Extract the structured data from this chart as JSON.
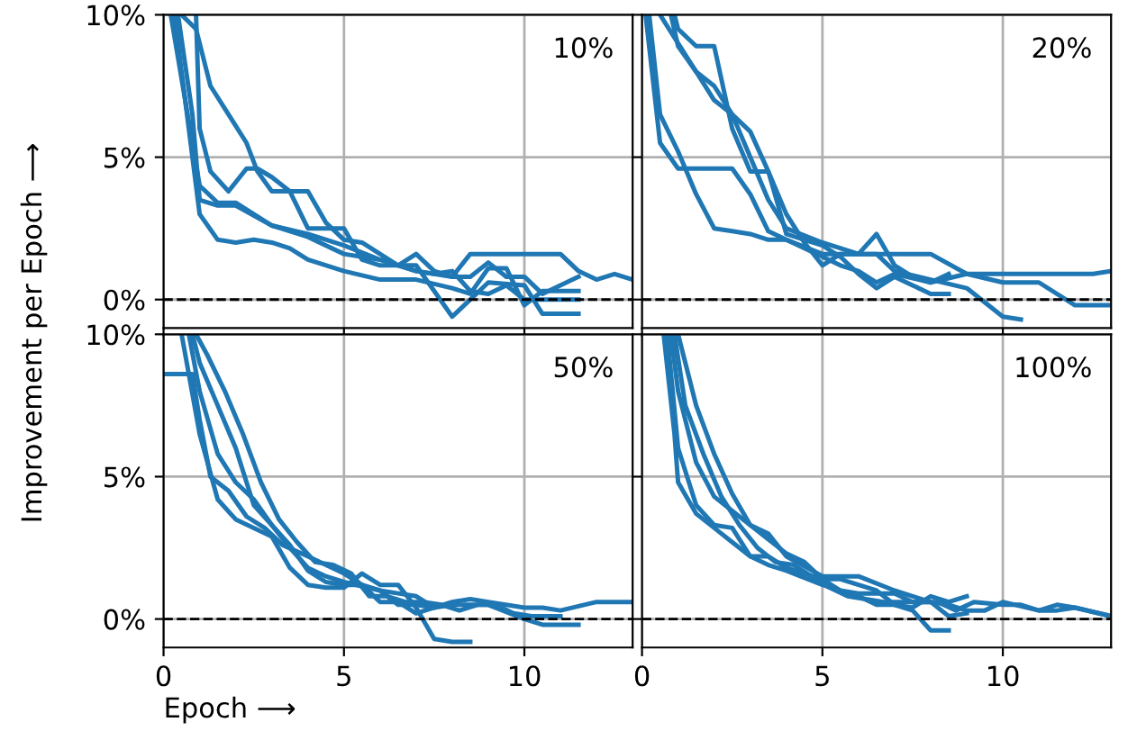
{
  "chart_data": [
    {
      "type": "line",
      "title": "10%",
      "ylabel": "Improvement per Epoch ⟶",
      "xlim": [
        0,
        13
      ],
      "ylim": [
        -1,
        10
      ],
      "xticks": [
        {
          "value": 0,
          "label": null
        },
        {
          "value": 5,
          "label": null
        },
        {
          "value": 10,
          "label": null
        }
      ],
      "yticks": [
        {
          "value": 0,
          "label": "0%"
        },
        {
          "value": 5,
          "label": "5%"
        },
        {
          "value": 10,
          "label": "10%"
        }
      ],
      "grid": true,
      "tick_labels": "y",
      "ref_lines": [
        {
          "axis": "y",
          "value": 0,
          "color": "#000000",
          "line_style": "dashed"
        }
      ],
      "series": [
        {
          "color": "#1f77b4",
          "x": [
            0.2,
            0.6,
            1.0,
            1.5,
            2.0,
            2.5,
            3.0,
            4.0,
            5.0,
            6.0,
            7.0,
            8.0,
            8.5,
            9.0,
            10.0,
            11.0,
            11.5,
            12.0,
            12.5,
            13.0
          ],
          "values": [
            10,
            7,
            4,
            3.4,
            3.4,
            3.0,
            2.6,
            2.3,
            1.9,
            1.4,
            1.0,
            0.8,
            1.6,
            1.6,
            1.6,
            1.6,
            1.0,
            0.7,
            0.9,
            0.7
          ]
        },
        {
          "color": "#1f77b4",
          "x": [
            0.5,
            0.9,
            1.3,
            1.8,
            2.3,
            2.6,
            3.0,
            3.5,
            4.0,
            5.0,
            5.5,
            6.0,
            7.0,
            7.5,
            8.0,
            9.0,
            10.0,
            10.5,
            11.5
          ],
          "values": [
            10,
            9.5,
            7.5,
            6.5,
            5.5,
            4.5,
            3.8,
            3.8,
            2.5,
            2.5,
            1.4,
            1.2,
            1.2,
            0.3,
            -0.6,
            0.6,
            0.5,
            -0.5,
            -0.5
          ]
        },
        {
          "color": "#1f77b4",
          "x": [
            0.3,
            0.7,
            1.0,
            1.5,
            2.0,
            2.5,
            3.0,
            3.5,
            4.0,
            5.0,
            6.0,
            7.0,
            8.0,
            8.5,
            9.0,
            9.5,
            10.0,
            10.5,
            11.5
          ],
          "values": [
            10,
            6,
            3.0,
            2.1,
            2.0,
            2.1,
            2.0,
            1.8,
            1.4,
            1.0,
            0.7,
            0.7,
            0.4,
            0.2,
            1.1,
            1.1,
            -0.2,
            0.3,
            0.3
          ]
        },
        {
          "color": "#1f77b4",
          "x": [
            0.4,
            0.8,
            1.0,
            1.5,
            2.0,
            3.0,
            4.0,
            5.0,
            6.0,
            7.0,
            7.5,
            8.0,
            8.5,
            9.0,
            9.5,
            10.0,
            11.5
          ],
          "values": [
            10,
            6.5,
            3.5,
            3.3,
            3.3,
            2.6,
            2.2,
            1.6,
            1.4,
            1.0,
            0.9,
            1.0,
            0.3,
            0.2,
            0.5,
            0,
            0
          ]
        },
        {
          "color": "#1f77b4",
          "x": [
            0.9,
            1.0,
            1.3,
            1.8,
            2.3,
            2.6,
            3.0,
            3.5,
            4.0,
            4.5,
            5.0,
            5.5,
            6.0,
            6.5,
            7.0,
            7.5,
            8.0,
            8.5,
            9.0,
            9.5,
            10.0,
            10.5,
            11.5
          ],
          "values": [
            10,
            6,
            4.5,
            3.8,
            4.6,
            4.6,
            4.3,
            3.8,
            3.8,
            2.7,
            2.1,
            2.0,
            1.6,
            1.2,
            1.6,
            1.0,
            0.8,
            0.8,
            1.3,
            0.8,
            0.8,
            0.2,
            0.8
          ]
        }
      ]
    },
    {
      "type": "line",
      "title": "20%",
      "xlim": [
        0,
        13
      ],
      "ylim": [
        -1,
        10
      ],
      "xticks": [
        {
          "value": 0,
          "label": null
        },
        {
          "value": 5,
          "label": null
        },
        {
          "value": 10,
          "label": null
        }
      ],
      "yticks": [
        {
          "value": 0,
          "label": null
        },
        {
          "value": 5,
          "label": null
        },
        {
          "value": 10,
          "label": null
        }
      ],
      "grid": true,
      "tick_labels": false,
      "ref_lines": [
        {
          "axis": "y",
          "value": 0,
          "color": "#000000",
          "line_style": "dashed"
        }
      ],
      "series": [
        {
          "color": "#1f77b4",
          "x": [
            0.1,
            0.5,
            1.0,
            1.5,
            2.0,
            2.5,
            3.0,
            3.5,
            4.0,
            5.0,
            5.5,
            6.0,
            6.5,
            7.0,
            8.0,
            9.0,
            10.0,
            11.0,
            12.0,
            12.5,
            13.0
          ],
          "values": [
            10,
            5.5,
            4.6,
            4.6,
            4.6,
            4.6,
            3.7,
            2.4,
            2.1,
            1.5,
            1.2,
            1.0,
            0.6,
            0.9,
            0.6,
            0.9,
            0.9,
            0.9,
            0.9,
            0.9,
            1.0
          ]
        },
        {
          "color": "#1f77b4",
          "x": [
            0.2,
            0.5,
            1.0,
            1.5,
            2.0,
            2.5,
            3.0,
            3.5,
            4.0,
            5.0,
            5.5,
            6.0,
            7.0,
            8.0,
            9.0,
            10.0,
            10.5,
            11.0,
            12.0,
            13.0
          ],
          "values": [
            10,
            6.5,
            5.2,
            3.7,
            2.5,
            2.4,
            2.3,
            2.1,
            2.1,
            1.6,
            1.6,
            1.6,
            1.6,
            1.6,
            0.9,
            0.6,
            0.6,
            0.6,
            -0.2,
            -0.2
          ]
        },
        {
          "color": "#1f77b4",
          "x": [
            0.5,
            1.0,
            1.5,
            2.0,
            2.5,
            3.0,
            3.5,
            4.0,
            5.0,
            6.0,
            6.5,
            7.0,
            8.0,
            9.0,
            10.0,
            10.5
          ],
          "values": [
            10,
            9.0,
            8.0,
            7.0,
            6.5,
            5.0,
            3.5,
            2.5,
            2.0,
            1.6,
            1.6,
            1.0,
            0.7,
            0.4,
            -0.6,
            -0.7
          ]
        },
        {
          "color": "#1f77b4",
          "x": [
            0.8,
            1.0,
            1.5,
            2.0,
            2.5,
            3.0,
            3.5,
            4.0,
            4.5,
            5.0,
            5.5,
            6.0,
            6.5,
            7.0,
            7.5,
            8.0,
            8.5
          ],
          "values": [
            10,
            8.9,
            8.0,
            7.5,
            6.5,
            5.9,
            4.5,
            3.0,
            2.0,
            1.2,
            1.6,
            1.6,
            2.3,
            1.2,
            0.8,
            0.6,
            0.9
          ]
        },
        {
          "color": "#1f77b4",
          "x": [
            0.9,
            1.0,
            1.5,
            2.0,
            2.5,
            3.0,
            3.5,
            4.0,
            4.5,
            5.0,
            5.5,
            6.0,
            6.5,
            7.0,
            7.5,
            8.0,
            8.5
          ],
          "values": [
            10,
            9.5,
            8.9,
            8.9,
            6.0,
            4.5,
            4.5,
            2.3,
            2.1,
            1.9,
            1.5,
            0.9,
            0.4,
            0.8,
            0.5,
            0.2,
            0.2
          ]
        }
      ]
    },
    {
      "type": "line",
      "xlabel": "Epoch ⟶",
      "xlim": [
        0,
        13
      ],
      "ylim": [
        -1,
        10
      ],
      "xticks": [
        0,
        5,
        10
      ],
      "yticks": [
        {
          "value": 0,
          "label": "0%"
        },
        {
          "value": 5,
          "label": "5%"
        },
        {
          "value": 10,
          "label": "10%"
        }
      ],
      "grid": true,
      "ref_lines": [
        {
          "axis": "y",
          "value": 0,
          "color": "#000000",
          "line_style": "dashed"
        }
      ],
      "title": "50%",
      "series": [
        {
          "color": "#1f77b4",
          "x": [
            0,
            0.8,
            1.0,
            1.3,
            1.8,
            2.3,
            2.8,
            3.3,
            4.0,
            5.0,
            5.5,
            6.0,
            6.5,
            7.0,
            7.5,
            8.0,
            8.5,
            9.0,
            10.0,
            10.5,
            11.0,
            12.0,
            13.0
          ],
          "values": [
            8.6,
            8.6,
            7.0,
            5.0,
            4.5,
            3.6,
            3.2,
            2.6,
            2.2,
            1.6,
            1.2,
            1.0,
            0.5,
            0.5,
            0.4,
            0.6,
            0.7,
            0.6,
            0.4,
            0.4,
            0.3,
            0.6,
            0.6
          ]
        },
        {
          "color": "#1f77b4",
          "x": [
            0.5,
            1.0,
            1.5,
            2.0,
            2.5,
            3.0,
            3.5,
            4.0,
            4.5,
            5.0,
            5.5,
            6.0,
            6.5,
            7.0,
            7.5,
            8.0,
            8.5
          ],
          "values": [
            10,
            6.5,
            4.2,
            3.5,
            3.2,
            2.9,
            1.8,
            1.2,
            1.1,
            1.1,
            1.6,
            1.2,
            1.2,
            0.4,
            -0.7,
            -0.8,
            -0.8
          ]
        },
        {
          "color": "#1f77b4",
          "x": [
            0.7,
            1.0,
            1.5,
            2.0,
            2.5,
            3.0,
            3.5,
            4.0,
            4.5,
            5.0,
            6.0,
            6.5,
            7.0,
            7.5,
            8.0,
            9.0,
            10.0,
            10.5,
            11.5
          ],
          "values": [
            10,
            8.0,
            5.8,
            4.8,
            4.2,
            3.3,
            2.5,
            1.8,
            1.5,
            1.3,
            1.0,
            0.9,
            0.8,
            0.4,
            0.5,
            0.5,
            0.0,
            -0.2,
            -0.2
          ]
        },
        {
          "color": "#1f77b4",
          "x": [
            0.8,
            1.0,
            1.5,
            2.0,
            2.5,
            3.0,
            3.5,
            4.0,
            4.5,
            5.0,
            5.5,
            6.0,
            6.5,
            7.0,
            7.5
          ],
          "values": [
            10,
            9.0,
            7.5,
            6.0,
            4.0,
            3.3,
            2.6,
            1.7,
            1.3,
            1.2,
            1.2,
            0.6,
            0.6,
            0.2,
            0.4
          ]
        },
        {
          "color": "#1f77b4",
          "x": [
            0.9,
            1.2,
            1.7,
            2.2,
            2.7,
            3.2,
            3.7,
            4.2,
            4.7,
            5.2,
            5.7,
            6.2,
            6.7,
            7.2,
            7.7,
            8.2,
            8.7,
            9.2,
            9.7,
            10.2,
            11.0
          ],
          "values": [
            10,
            9.3,
            8.0,
            6.5,
            4.8,
            3.5,
            2.7,
            2.0,
            1.9,
            1.6,
            0.8,
            0.8,
            0.6,
            0.6,
            0.5,
            0.3,
            0.5,
            0.5,
            0.2,
            0.1,
            0.1
          ]
        }
      ]
    },
    {
      "type": "line",
      "title": "100%",
      "xlim": [
        0,
        13
      ],
      "ylim": [
        -1,
        10
      ],
      "xticks": [
        0,
        5,
        10
      ],
      "yticks": [
        {
          "value": 0,
          "label": null
        },
        {
          "value": 5,
          "label": null
        },
        {
          "value": 10,
          "label": null
        }
      ],
      "grid": true,
      "tick_labels": "x",
      "ref_lines": [
        {
          "axis": "y",
          "value": 0,
          "color": "#000000",
          "line_style": "dashed"
        }
      ],
      "series": [
        {
          "color": "#1f77b4",
          "x": [
            0.6,
            0.9,
            1.0,
            1.5,
            2.0,
            2.5,
            3.0,
            3.5,
            4.0,
            5.0,
            6.0,
            6.5,
            7.0,
            7.5,
            8.0,
            8.5,
            9.0
          ],
          "values": [
            10,
            6.5,
            4.8,
            3.7,
            3.2,
            2.7,
            2.2,
            1.9,
            1.7,
            1.2,
            0.8,
            0.5,
            0.5,
            0.4,
            0.8,
            0.6,
            0.8
          ]
        },
        {
          "color": "#1f77b4",
          "x": [
            0.7,
            1.0,
            1.5,
            2.0,
            2.5,
            3.0,
            3.5,
            4.0,
            5.0,
            5.5,
            6.0,
            7.0,
            7.5,
            8.0,
            8.5,
            9.0,
            9.5,
            10.0,
            11.0,
            11.5,
            12.0,
            13.0
          ],
          "values": [
            10,
            6.0,
            4.0,
            3.3,
            3.2,
            2.2,
            2.2,
            1.8,
            1.4,
            1.0,
            0.9,
            0.9,
            0.6,
            0.6,
            0.5,
            0.3,
            0.3,
            0.6,
            0.3,
            0.5,
            0.4,
            0.1
          ]
        },
        {
          "color": "#1f77b4",
          "x": [
            0.8,
            1.0,
            1.5,
            2.0,
            2.5,
            3.0,
            3.5,
            4.0,
            5.0,
            5.5,
            6.0,
            7.0,
            7.5,
            8.0,
            8.5,
            9.0
          ],
          "values": [
            10,
            8.0,
            5.5,
            4.3,
            3.8,
            3.3,
            3.0,
            2.2,
            1.5,
            1.5,
            1.5,
            1.0,
            0.8,
            0.6,
            0.1,
            0.2
          ]
        },
        {
          "color": "#1f77b4",
          "x": [
            0.9,
            1.2,
            1.7,
            2.2,
            2.7,
            3.2,
            3.7,
            4.2,
            4.7,
            5.2,
            5.7,
            6.2,
            6.7,
            7.2,
            7.7,
            8.2,
            8.7,
            9.2,
            10.0,
            10.5,
            11.0,
            11.5,
            12.0,
            13.0
          ],
          "values": [
            10,
            7.5,
            5.8,
            4.3,
            3.3,
            2.5,
            2.0,
            1.9,
            1.5,
            1.1,
            0.8,
            0.7,
            0.6,
            0.6,
            0.6,
            0.6,
            0.3,
            0.6,
            0.5,
            0.5,
            0.3,
            0.3,
            0.4,
            0.1
          ]
        },
        {
          "color": "#1f77b4",
          "x": [
            1.0,
            1.5,
            2.0,
            2.5,
            3.0,
            3.5,
            4.0,
            4.5,
            5.0,
            5.5,
            6.0,
            6.5,
            7.0,
            7.5,
            8.0,
            8.5
          ],
          "values": [
            10,
            7.5,
            5.8,
            4.4,
            3.3,
            2.8,
            2.3,
            2.0,
            1.4,
            1.4,
            1.2,
            1.0,
            0.5,
            0.3,
            -0.4,
            -0.4
          ]
        }
      ]
    }
  ]
}
